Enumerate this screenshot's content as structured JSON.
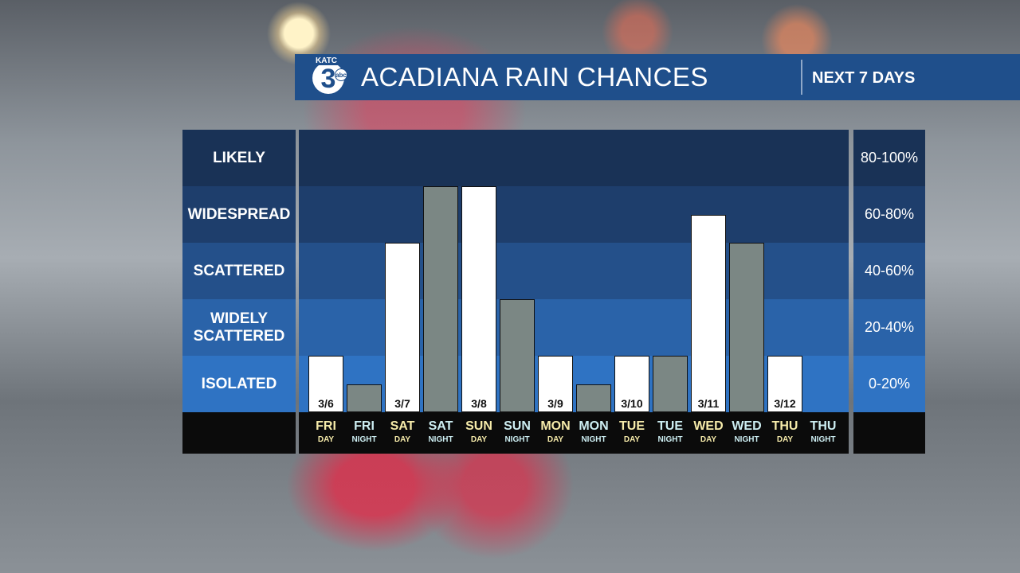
{
  "logo": {
    "station": "KATC",
    "number": "3",
    "network": "abc"
  },
  "chart_data": {
    "type": "bar",
    "title": "ACADIANA RAIN CHANCES",
    "subtitle": "NEXT 7 DAYS",
    "categories": [
      "FRI",
      "FRI",
      "SAT",
      "SAT",
      "SUN",
      "SUN",
      "MON",
      "MON",
      "TUE",
      "TUE",
      "WED",
      "WED",
      "THU",
      "THU"
    ],
    "subcategories": [
      "DAY",
      "NIGHT",
      "DAY",
      "NIGHT",
      "DAY",
      "NIGHT",
      "DAY",
      "NIGHT",
      "DAY",
      "NIGHT",
      "DAY",
      "NIGHT",
      "DAY",
      "NIGHT"
    ],
    "date_labels": [
      "3/6",
      null,
      "3/7",
      null,
      "3/8",
      null,
      "3/9",
      null,
      "3/10",
      null,
      "3/11",
      null,
      "3/12",
      null
    ],
    "values": [
      20,
      10,
      60,
      80,
      80,
      40,
      20,
      10,
      20,
      20,
      70,
      60,
      20,
      0
    ],
    "colors": [
      "#ffffff",
      "#7b8784",
      "#ffffff",
      "#7b8784",
      "#ffffff",
      "#7b8784",
      "#ffffff",
      "#7b8784",
      "#ffffff",
      "#7b8784",
      "#ffffff",
      "#7b8784",
      "#ffffff",
      "#7b8784"
    ],
    "label_colors": {
      "DAY": "#f6ebaa",
      "NIGHT": "#cdeef2"
    },
    "ylim": [
      0,
      100
    ],
    "yticks": [
      0,
      20,
      40,
      60,
      80,
      100
    ],
    "bands": [
      {
        "label": "ISOLATED",
        "range": "0-20%",
        "color": "#2f73c3"
      },
      {
        "label": "WIDELY SCATTERED",
        "range": "20-40%",
        "color": "#2a63a9"
      },
      {
        "label": "SCATTERED",
        "range": "40-60%",
        "color": "#24508a"
      },
      {
        "label": "WIDESPREAD",
        "range": "60-80%",
        "color": "#1e3e6c"
      },
      {
        "label": "LIKELY",
        "range": "80-100%",
        "color": "#193256"
      }
    ]
  }
}
